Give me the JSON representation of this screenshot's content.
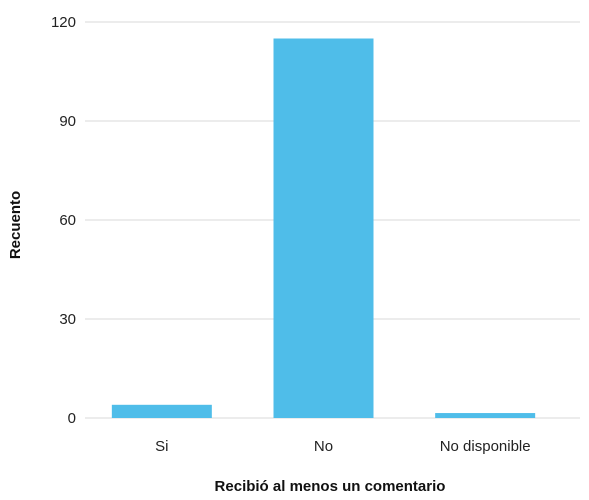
{
  "chart_data": {
    "type": "bar",
    "categories": [
      "Si",
      "No",
      "No disponible"
    ],
    "values": [
      4,
      115,
      1.5
    ],
    "xlabel": "Recibió al menos un comentario",
    "ylabel": "Recuento",
    "ylim": [
      0,
      120
    ],
    "yticks": [
      "0",
      "30",
      "60",
      "90",
      "120"
    ],
    "bar_color": "#4fbde9",
    "grid": true,
    "legend": "none"
  }
}
